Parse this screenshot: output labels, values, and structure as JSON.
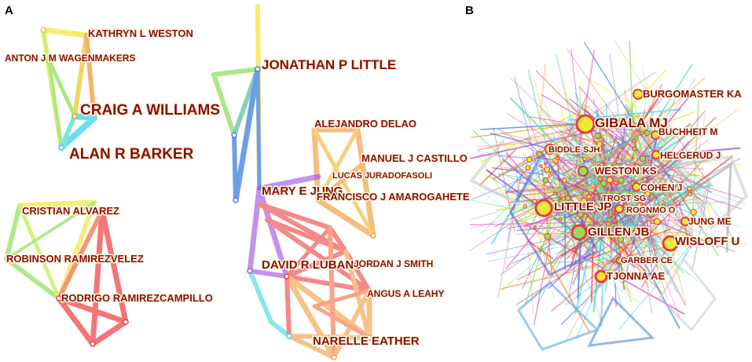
{
  "panels": [
    {
      "letter": "A"
    },
    {
      "letter": "B"
    }
  ],
  "panel_a": {
    "authors": [
      {
        "name": "KATHRYN L WESTON"
      },
      {
        "name": "ANTON J M WAGENMAKERS"
      },
      {
        "name": "CRAIG A WILLIAMS"
      },
      {
        "name": "ALAN R BARKER"
      },
      {
        "name": "CRISTIAN ALVAREZ"
      },
      {
        "name": "ROBINSON RAMIREZVELEZ"
      },
      {
        "name": "RODRIGO RAMIREZCAMPILLO"
      },
      {
        "name": "JONATHAN P LITTLE"
      },
      {
        "name": "ALEJANDRO DELAO"
      },
      {
        "name": "MANUEL J CASTILLO"
      },
      {
        "name": "LUCAS JURADOFASOLI"
      },
      {
        "name": "MARY E JUNG"
      },
      {
        "name": "FRANCISCO J AMAROGAHETE"
      },
      {
        "name": "DAVID R LUBANS"
      },
      {
        "name": "JORDAN J SMITH"
      },
      {
        "name": "ANGUS A LEAHY"
      },
      {
        "name": "NARELLE EATHER"
      }
    ]
  },
  "panel_b": {
    "authors": [
      {
        "name": "BURGOMASTER KA"
      },
      {
        "name": "GIBALA MJ"
      },
      {
        "name": "BUCHHEIT M"
      },
      {
        "name": "BIDDLE SJH"
      },
      {
        "name": "HELGERUD J"
      },
      {
        "name": "WESTON KS"
      },
      {
        "name": "COHEN J"
      },
      {
        "name": "TROST SG"
      },
      {
        "name": "LITTLE JP"
      },
      {
        "name": "ROGNMO O"
      },
      {
        "name": "JUNG ME"
      },
      {
        "name": "GILLEN JB"
      },
      {
        "name": "WISLOFF U"
      },
      {
        "name": "GARBER CE"
      },
      {
        "name": "TJONNA AE"
      }
    ]
  },
  "colors": {
    "label_text": "#8b0d0d",
    "label_halo": "#fffbe0",
    "yellow": "#f2e83a",
    "green": "#8fe05a",
    "cyan": "#39d6e8",
    "blue": "#3d7fe0",
    "orange": "#f29a3a",
    "red": "#ee3b3b",
    "purple": "#9a4de0",
    "grey": "#c9c9c9"
  }
}
